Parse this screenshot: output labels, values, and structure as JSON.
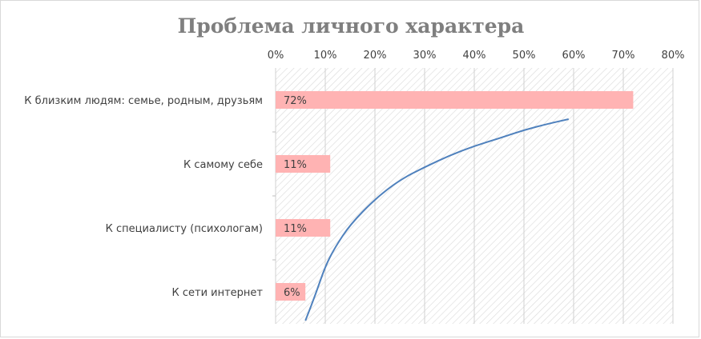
{
  "chart_data": {
    "type": "bar",
    "orientation": "horizontal",
    "title": "Проблема личного характера",
    "categories": [
      "К близким людям: семье, родным, друзьям",
      "К самому себе",
      "К специалисту (психологам)",
      "К сети интернет"
    ],
    "values": [
      72,
      11,
      11,
      6
    ],
    "data_labels": [
      "72%",
      "11%",
      "11%",
      "6%"
    ],
    "x_ticks": [
      "0%",
      "10%",
      "20%",
      "30%",
      "40%",
      "50%",
      "60%",
      "70%",
      "80%"
    ],
    "xlim": [
      0,
      80
    ],
    "x_axis_position": "top",
    "grid": true,
    "legend": "none",
    "bar_color": "#ffb3b3",
    "trendline": {
      "type": "logarithmic",
      "color": "#4f81bd",
      "x": [
        6,
        8,
        10,
        12,
        15,
        20,
        25,
        30,
        35,
        40,
        45,
        50,
        55,
        59
      ],
      "y_category_position": [
        3.95,
        3.55,
        3.1,
        2.8,
        2.45,
        2.05,
        1.75,
        1.55,
        1.37,
        1.22,
        1.1,
        0.97,
        0.87,
        0.8
      ]
    }
  }
}
